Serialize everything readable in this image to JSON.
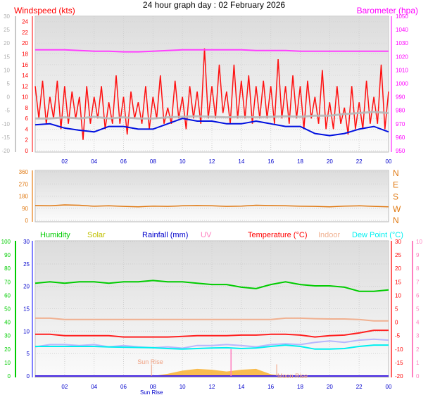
{
  "title": "24 hour graph day : 02 February 2026",
  "chart_data": [
    {
      "type": "line",
      "panel": "wind-barometer",
      "left_label": "Windspeed (kts)",
      "right_label": "Barometer (hpa)",
      "xlim": [
        0,
        24
      ],
      "x_tick_labels": [
        "02",
        "04",
        "06",
        "08",
        "10",
        "12",
        "14",
        "16",
        "18",
        "20",
        "22",
        "00"
      ],
      "ylim_left": [
        0,
        25
      ],
      "left_ticks": [
        0,
        2,
        4,
        6,
        8,
        10,
        12,
        14,
        16,
        18,
        20,
        22,
        24
      ],
      "outer_left_ticks": [
        -20,
        -15,
        -10,
        -5,
        0,
        5,
        10,
        15,
        20,
        25,
        30
      ],
      "ylim_right": [
        950,
        1050
      ],
      "right_ticks": [
        950,
        960,
        970,
        980,
        990,
        1000,
        1010,
        1020,
        1030,
        1040,
        1050
      ],
      "grid": true,
      "colors": {
        "gust": "#ff1010",
        "average": "#b8b8b8",
        "speed": "#0010e0",
        "barometer": "#ff40ff",
        "left_axis": "#ff0000",
        "outer_axis": "#c0c0c0",
        "right_axis": "#ff00ff",
        "x_axis": "#0000cc"
      },
      "series": {
        "gust_x_step_hours": 0.5,
        "gust": [
          12,
          13,
          10,
          13,
          12,
          11,
          10,
          12,
          10,
          12,
          9,
          14,
          10,
          11,
          9,
          12,
          10,
          14,
          8,
          13,
          10,
          12,
          11,
          19,
          12,
          16,
          11,
          16,
          13,
          14,
          12,
          13,
          12,
          17,
          12,
          14,
          12,
          13,
          10,
          15,
          9,
          12,
          8,
          12,
          9,
          13,
          10,
          16,
          11
        ],
        "gust_low": [
          6,
          5,
          6,
          4,
          5,
          6,
          2,
          5,
          6,
          4,
          5,
          5,
          3,
          6,
          5,
          4,
          6,
          5,
          5,
          6,
          4,
          6,
          5,
          6,
          6,
          7,
          5,
          6,
          6,
          5,
          6,
          6,
          5,
          6,
          5,
          6,
          4,
          6,
          5,
          4,
          4,
          5,
          3,
          4,
          4,
          5,
          5,
          4,
          4
        ],
        "hourly_x_step_hours": 1,
        "average": [
          6,
          6,
          6.2,
          6,
          6.3,
          6,
          6.2,
          6,
          6,
          6.2,
          6.3,
          6.4,
          6.3,
          6.2,
          6.3,
          6.2,
          6.3,
          6.4,
          6.3,
          6.5,
          6.5,
          6.8,
          7,
          7.2,
          7
        ],
        "speed": [
          4.8,
          5,
          4.2,
          3.8,
          3.5,
          4.5,
          4.5,
          4,
          4,
          5,
          6,
          5.5,
          5.5,
          5,
          5,
          5.5,
          5,
          4.5,
          4.5,
          3.2,
          2.8,
          3.2,
          4,
          4.5,
          3.5
        ],
        "barometer": [
          1025,
          1025,
          1025,
          1024.5,
          1024,
          1024,
          1023.5,
          1023.5,
          1024,
          1024.5,
          1025,
          1025,
          1025,
          1025,
          1025,
          1024.5,
          1024.5,
          1024.5,
          1024,
          1024,
          1024,
          1024,
          1024,
          1024,
          1024
        ]
      }
    },
    {
      "type": "line",
      "panel": "wind-direction",
      "xlim": [
        0,
        24
      ],
      "ylim": [
        0,
        360
      ],
      "left_ticks": [
        0,
        90,
        180,
        270,
        360
      ],
      "right_labels": [
        "N",
        "W",
        "S",
        "E",
        "N"
      ],
      "colors": {
        "direction": "#e07810",
        "axis": "#e07810"
      },
      "series": {
        "direction_x_step_hours": 1,
        "direction": [
          110,
          108,
          115,
          112,
          105,
          108,
          104,
          100,
          106,
          104,
          108,
          110,
          108,
          104,
          106,
          112,
          110,
          108,
          105,
          104,
          100,
          106,
          108,
          104,
          100
        ]
      }
    },
    {
      "type": "line",
      "panel": "temperature-humidity",
      "legend": [
        {
          "label": "Humidity",
          "color": "#00cc00"
        },
        {
          "label": "Solar",
          "color": "#c0c000"
        },
        {
          "label": "Rainfall (mm)",
          "color": "#0000cc"
        },
        {
          "label": "UV",
          "color": "#ff80c0"
        },
        {
          "label": "Temperature (°C)",
          "color": "#ff0000"
        },
        {
          "label": "Indoor",
          "color": "#f0b090"
        },
        {
          "label": "Dew Point (°C)",
          "color": "#00f0f0"
        }
      ],
      "xlim": [
        0,
        24
      ],
      "x_tick_labels": [
        "02",
        "04",
        "06",
        "08",
        "10",
        "12",
        "14",
        "16",
        "18",
        "20",
        "22",
        "00"
      ],
      "humidity_ticks": [
        0,
        10,
        20,
        30,
        40,
        50,
        60,
        70,
        80,
        90,
        100
      ],
      "rain_ticks": [
        0,
        5,
        10,
        15,
        20,
        25,
        30
      ],
      "temp_ticks": [
        -20,
        -15,
        -10,
        -5,
        0,
        5,
        10,
        15,
        20,
        25,
        30
      ],
      "uv_ticks": [
        0,
        1,
        2,
        3,
        4,
        5,
        6,
        7,
        8,
        9,
        10
      ],
      "annotations": [
        {
          "label": "Sun Rise",
          "x": 7.9
        },
        {
          "label": "Moon Rise",
          "x": 16.4
        }
      ],
      "x_extra_label": "Sun Rise",
      "series": {
        "hourly_x_step_hours": 1,
        "humidity": [
          69,
          70,
          69,
          70,
          70,
          69,
          70,
          70,
          71,
          70,
          70,
          69,
          68,
          68,
          66,
          65,
          68,
          70,
          68,
          67,
          67,
          66,
          63,
          63,
          64
        ],
        "temperature": [
          -4.5,
          -4.5,
          -5,
          -5,
          -5,
          -5,
          -5.5,
          -5.5,
          -5.5,
          -5.5,
          -5.3,
          -5,
          -5,
          -5,
          -4.8,
          -4.8,
          -4.5,
          -4.5,
          -4.8,
          -5.5,
          -5,
          -4.8,
          -4,
          -3,
          -3
        ],
        "indoor": [
          1.5,
          1.5,
          1,
          1,
          1,
          1,
          1,
          1,
          1,
          1,
          1,
          1,
          1,
          1,
          1,
          1,
          1,
          1.5,
          1.5,
          1.3,
          1.2,
          1.2,
          1,
          0.5,
          0.5
        ],
        "dew_point": [
          -9,
          -9,
          -9,
          -9,
          -9,
          -9.2,
          -9.3,
          -9.4,
          -9.5,
          -9.8,
          -10,
          -9.8,
          -9.6,
          -9.5,
          -9.8,
          -9.6,
          -9,
          -8.5,
          -9,
          -10,
          -10,
          -9.8,
          -9,
          -8.5,
          -8.5
        ],
        "rainfall": [
          0,
          0,
          0,
          0,
          0,
          0,
          0,
          0,
          0,
          0,
          0,
          0,
          0,
          0,
          0,
          0,
          0,
          0,
          0,
          0,
          0,
          0,
          0,
          0,
          0
        ],
        "lavender": [
          6.5,
          7,
          7,
          6.8,
          7,
          6.5,
          6.8,
          6.5,
          6.3,
          6.5,
          6.2,
          6.8,
          6.8,
          7,
          6.8,
          6.5,
          7,
          7.2,
          7,
          7.5,
          7.8,
          7.5,
          8,
          8.2,
          8
        ],
        "solar": [
          0,
          0,
          0,
          0,
          0,
          0,
          0,
          0,
          0,
          0.5,
          1.2,
          1.6,
          1.4,
          1,
          1.4,
          1.6,
          0.4,
          0,
          0,
          0,
          0,
          0,
          0,
          0,
          0
        ],
        "uv_spike_hour": 13.3,
        "uv_spike_value": 2
      }
    }
  ]
}
